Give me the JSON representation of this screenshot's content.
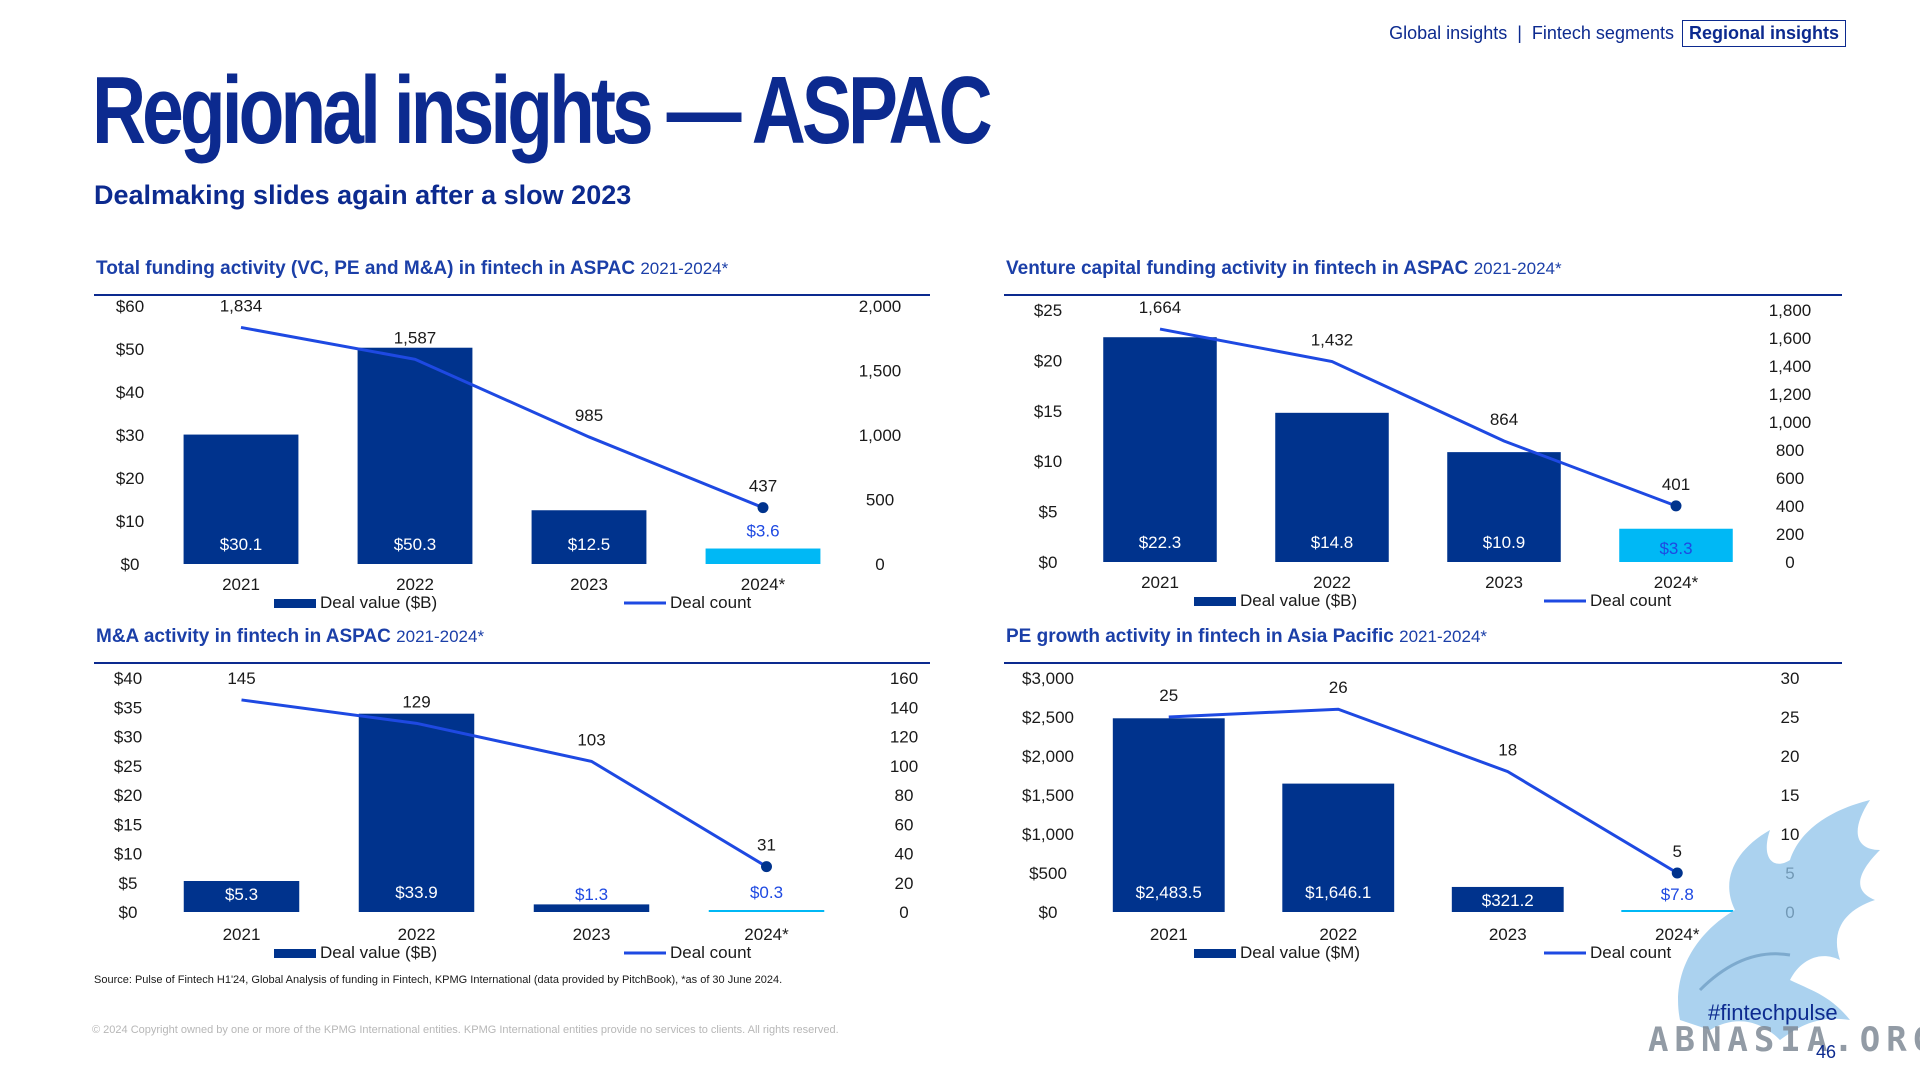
{
  "nav": {
    "items": [
      "Global insights",
      "Fintech segments",
      "Regional insights"
    ],
    "separator": "|",
    "active_index": 2
  },
  "page": {
    "title": "Regional insights — ASPAC",
    "subtitle": "Dealmaking slides again after a slow 2023",
    "source": "Source: Pulse of Fintech H1'24, Global Analysis of funding in Fintech, KPMG International (data provided by PitchBook), *as of 30 June 2024.",
    "copyright": "© 2024 Copyright owned by one or more of the KPMG International entities. KPMG International entities provide no services to clients. All rights reserved.",
    "hashtag": "#fintechpulse",
    "page_number": "46",
    "watermark_text": "ABNASIA.ORG"
  },
  "colors": {
    "navy": "#0c2a8f",
    "bar": "#00338d",
    "highlight": "#00b8f5",
    "line": "#1e49e2"
  },
  "chart_data": [
    {
      "type": "bar",
      "title": "Total funding activity (VC, PE and M&A) in fintech in ASPAC",
      "period": "2021-2024*",
      "categories": [
        "2021",
        "2022",
        "2023",
        "2024*"
      ],
      "series": [
        {
          "name": "Deal value ($B)",
          "type": "bar",
          "axis": "left",
          "values": [
            30.1,
            50.3,
            12.5,
            3.6
          ],
          "labels": [
            "$30.1",
            "$50.3",
            "$12.5",
            "$3.6"
          ]
        },
        {
          "name": "Deal count",
          "type": "line",
          "axis": "right",
          "values": [
            1834,
            1587,
            985,
            437
          ],
          "labels": [
            "1,834",
            "1,587",
            "985",
            "437"
          ]
        }
      ],
      "left_axis": {
        "ylim": [
          0,
          60
        ],
        "ticks": [
          "$0",
          "$10",
          "$20",
          "$30",
          "$40",
          "$50",
          "$60"
        ]
      },
      "right_axis": {
        "ylim": [
          0,
          2000
        ],
        "ticks": [
          "0",
          "500",
          "1,000",
          "1,500",
          "2,000"
        ]
      },
      "highlight_last": true,
      "legend_position": "bottom"
    },
    {
      "type": "bar",
      "title": "Venture capital funding activity in fintech in ASPAC",
      "period": "2021-2024*",
      "categories": [
        "2021",
        "2022",
        "2023",
        "2024*"
      ],
      "series": [
        {
          "name": "Deal value ($B)",
          "type": "bar",
          "axis": "left",
          "values": [
            22.3,
            14.8,
            10.9,
            3.3
          ],
          "labels": [
            "$22.3",
            "$14.8",
            "$10.9",
            "$3.3"
          ]
        },
        {
          "name": "Deal count",
          "type": "line",
          "axis": "right",
          "values": [
            1664,
            1432,
            864,
            401
          ],
          "labels": [
            "1,664",
            "1,432",
            "864",
            "401"
          ]
        }
      ],
      "left_axis": {
        "ylim": [
          0,
          25
        ],
        "ticks": [
          "$0",
          "$5",
          "$10",
          "$15",
          "$20",
          "$25"
        ]
      },
      "right_axis": {
        "ylim": [
          0,
          1800
        ],
        "ticks": [
          "0",
          "200",
          "400",
          "600",
          "800",
          "1,000",
          "1,200",
          "1,400",
          "1,600",
          "1,800"
        ]
      },
      "highlight_last": true,
      "legend_position": "bottom"
    },
    {
      "type": "bar",
      "title": "M&A activity in fintech in ASPAC",
      "period": "2021-2024*",
      "categories": [
        "2021",
        "2022",
        "2023",
        "2024*"
      ],
      "series": [
        {
          "name": "Deal value ($B)",
          "type": "bar",
          "axis": "left",
          "values": [
            5.3,
            33.9,
            1.3,
            0.3
          ],
          "labels": [
            "$5.3",
            "$33.9",
            "$1.3",
            "$0.3"
          ]
        },
        {
          "name": "Deal count",
          "type": "line",
          "axis": "right",
          "values": [
            145,
            129,
            103,
            31
          ],
          "labels": [
            "145",
            "129",
            "103",
            "31"
          ]
        }
      ],
      "left_axis": {
        "ylim": [
          0,
          40
        ],
        "ticks": [
          "$0",
          "$5",
          "$10",
          "$15",
          "$20",
          "$25",
          "$30",
          "$35",
          "$40"
        ]
      },
      "right_axis": {
        "ylim": [
          0,
          160
        ],
        "ticks": [
          "0",
          "20",
          "40",
          "60",
          "80",
          "100",
          "120",
          "140",
          "160"
        ]
      },
      "highlight_last": true,
      "legend_position": "bottom"
    },
    {
      "type": "bar",
      "title": "PE growth activity in fintech in Asia Pacific",
      "period": "2021-2024*",
      "categories": [
        "2021",
        "2022",
        "2023",
        "2024*"
      ],
      "series": [
        {
          "name": "Deal value ($M)",
          "type": "bar",
          "axis": "left",
          "values": [
            2483.5,
            1646.1,
            321.2,
            7.8
          ],
          "labels": [
            "$2,483.5",
            "$1,646.1",
            "$321.2",
            "$7.8"
          ]
        },
        {
          "name": "Deal count",
          "type": "line",
          "axis": "right",
          "values": [
            25,
            26,
            18,
            5
          ],
          "labels": [
            "25",
            "26",
            "18",
            "5"
          ]
        }
      ],
      "left_axis": {
        "ylim": [
          0,
          3000
        ],
        "ticks": [
          "$0",
          "$500",
          "$1,000",
          "$1,500",
          "$2,000",
          "$2,500",
          "$3,000"
        ]
      },
      "right_axis": {
        "ylim": [
          0,
          30
        ],
        "ticks": [
          "0",
          "5",
          "10",
          "15",
          "20",
          "25",
          "30"
        ]
      },
      "highlight_last": true,
      "legend_position": "bottom"
    }
  ]
}
